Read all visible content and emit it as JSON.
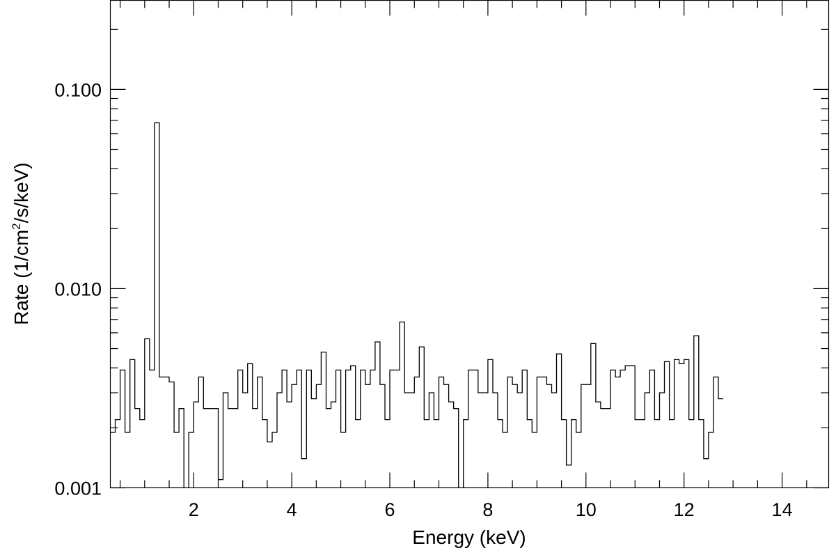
{
  "chart_data": {
    "type": "line",
    "step": true,
    "xlabel": "Energy (keV)",
    "ylabel": "Rate (1/cm²/s/keV)",
    "ylabel_parts": {
      "prefix": "Rate (1/cm",
      "sup": "2",
      "suffix": "/s/keV)"
    },
    "xlim": [
      0.3,
      14.95
    ],
    "ylim": [
      0.001,
      0.28
    ],
    "yscale": "log",
    "grid": false,
    "x_ticks": [
      2,
      4,
      6,
      8,
      10,
      12,
      14
    ],
    "x_tick_labels": [
      "2",
      "4",
      "6",
      "8",
      "10",
      "12",
      "14"
    ],
    "y_ticks": [
      0.001,
      0.01,
      0.1
    ],
    "y_tick_labels": [
      "0.001",
      "0.010",
      "0.100"
    ],
    "bin_width": 0.1,
    "series": [
      {
        "values": [
          0.0019,
          0.0022,
          0.0039,
          0.0019,
          0.0044,
          0.0025,
          0.0022,
          0.0056,
          0.0039,
          0.068,
          0.0036,
          0.0036,
          0.0034,
          0.0019,
          0.0025,
          0.0006,
          0.0019,
          0.0027,
          0.0036,
          0.0025,
          0.0025,
          0.0025,
          0.0011,
          0.003,
          0.0025,
          0.0025,
          0.0039,
          0.003,
          0.0042,
          0.0025,
          0.0036,
          0.0022,
          0.0017,
          0.0019,
          0.003,
          0.0039,
          0.0027,
          0.0033,
          0.0039,
          0.0014,
          0.0039,
          0.0028,
          0.0033,
          0.0048,
          0.0025,
          0.0027,
          0.0039,
          0.0019,
          0.0039,
          0.0041,
          0.0022,
          0.0039,
          0.0033,
          0.0039,
          0.0054,
          0.0033,
          0.0022,
          0.0039,
          0.0039,
          0.0068,
          0.003,
          0.003,
          0.0036,
          0.0051,
          0.0022,
          0.003,
          0.0022,
          0.0036,
          0.0033,
          0.0027,
          0.0025,
          0.0006,
          0.0022,
          0.0039,
          0.0039,
          0.003,
          0.003,
          0.0044,
          0.003,
          0.0022,
          0.0019,
          0.0036,
          0.0033,
          0.003,
          0.0039,
          0.0022,
          0.0019,
          0.0036,
          0.0036,
          0.0033,
          0.003,
          0.0047,
          0.0022,
          0.0013,
          0.0022,
          0.0019,
          0.0033,
          0.0033,
          0.0053,
          0.0027,
          0.0025,
          0.0025,
          0.0039,
          0.0036,
          0.0039,
          0.0041,
          0.0041,
          0.0022,
          0.0022,
          0.003,
          0.0039,
          0.0022,
          0.003,
          0.0043,
          0.0022,
          0.0044,
          0.0042,
          0.0044,
          0.0022,
          0.0058,
          0.0022,
          0.0014,
          0.0019,
          0.0036,
          0.0028
        ]
      }
    ]
  }
}
